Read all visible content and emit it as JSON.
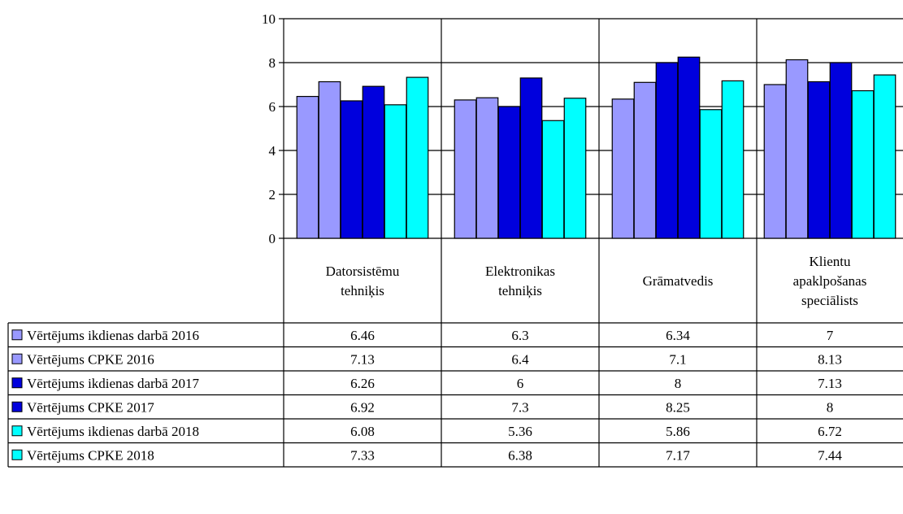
{
  "chart_data": {
    "type": "bar",
    "title": "",
    "xlabel": "",
    "ylabel": "",
    "ylim": [
      0,
      10
    ],
    "yticks": [
      0,
      2,
      4,
      6,
      8,
      10
    ],
    "grid": true,
    "legend": "data-table-left",
    "categories": [
      [
        "Datorsistēmu",
        "tehniķis"
      ],
      [
        "Elektronikas",
        "tehniķis"
      ],
      [
        "Grāmatvedis"
      ],
      [
        "Klientu",
        "apaklpošanas",
        "speciālists"
      ]
    ],
    "series": [
      {
        "name": "Vērtējums ikdienas darbā 2016",
        "color": "#9999ff",
        "values": [
          6.46,
          6.3,
          6.34,
          7
        ],
        "labels": [
          "6.46",
          "6.3",
          "6.34",
          "7"
        ]
      },
      {
        "name": "Vērtējums CPKE 2016",
        "color": "#9999ff",
        "values": [
          7.13,
          6.4,
          7.1,
          8.13
        ],
        "labels": [
          "7.13",
          "6.4",
          "7.1",
          "8.13"
        ]
      },
      {
        "name": "Vērtējums ikdienas darbā 2017",
        "color": "#0000dd",
        "values": [
          6.26,
          6,
          8,
          7.13
        ],
        "labels": [
          "6.26",
          "6",
          "8",
          "7.13"
        ]
      },
      {
        "name": "Vērtējums CPKE 2017",
        "color": "#0000dd",
        "values": [
          6.92,
          7.3,
          8.25,
          8
        ],
        "labels": [
          "6.92",
          "7.3",
          "8.25",
          "8"
        ]
      },
      {
        "name": "Vērtējums ikdienas darbā 2018",
        "color": "#00ffff",
        "values": [
          6.08,
          5.36,
          5.86,
          6.72
        ],
        "labels": [
          "6.08",
          "5.36",
          "5.86",
          "6.72"
        ]
      },
      {
        "name": "Vērtējums CPKE 2018",
        "color": "#00ffff",
        "values": [
          7.33,
          6.38,
          7.17,
          7.44
        ],
        "labels": [
          "7.33",
          "6.38",
          "7.17",
          "7.44"
        ]
      }
    ]
  }
}
